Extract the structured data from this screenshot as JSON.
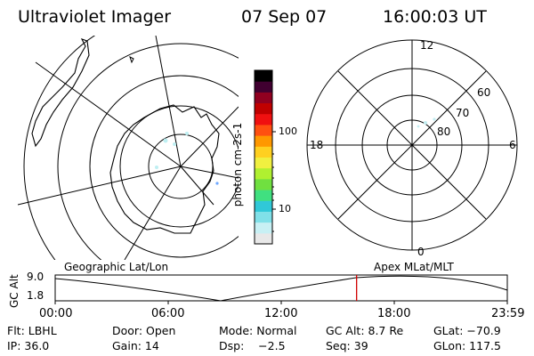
{
  "header": {
    "title": "Ultraviolet Imager",
    "date": "07 Sep 07",
    "time": "16:00:03 UT"
  },
  "colorbar": {
    "unit": "photon cm-2s-1",
    "ticks": [
      "100",
      "10"
    ],
    "colors": [
      "#e8e8e8",
      "#c8f0f4",
      "#80e0e8",
      "#30c8d8",
      "#40e080",
      "#70e040",
      "#b0f030",
      "#f0f040",
      "#ffd020",
      "#ff9800",
      "#ff5010",
      "#f01010",
      "#c00000",
      "#900020",
      "#400030",
      "#000000"
    ]
  },
  "geo_panel": {
    "label": "Geographic Lat/Lon"
  },
  "mag_panel": {
    "label": "Apex MLat/MLT",
    "mlt_labels": {
      "top": "12",
      "left": "18",
      "right": "6",
      "bottom": "0"
    },
    "lat_labels": [
      "60",
      "70",
      "80"
    ]
  },
  "timeline": {
    "y_label": "GC Alt",
    "y_ticks": [
      "9.0",
      "1.8"
    ],
    "x_ticks": [
      "00:00",
      "06:00",
      "12:00",
      "18:00",
      "23:59"
    ],
    "current_time_hours": 16.0
  },
  "status": {
    "row1": {
      "flt": "Flt: LBHL",
      "door": "Door: Open",
      "mode": "Mode: Normal",
      "gcalt": "GC Alt: 8.7 Re",
      "glat": "GLat: −70.9"
    },
    "row2": {
      "ip": "IP: 36.0",
      "gain": "Gain: 14",
      "dsp": "Dsp:    −2.5",
      "seq": "Seq: 39",
      "glon": "GLon: 117.5"
    }
  }
}
